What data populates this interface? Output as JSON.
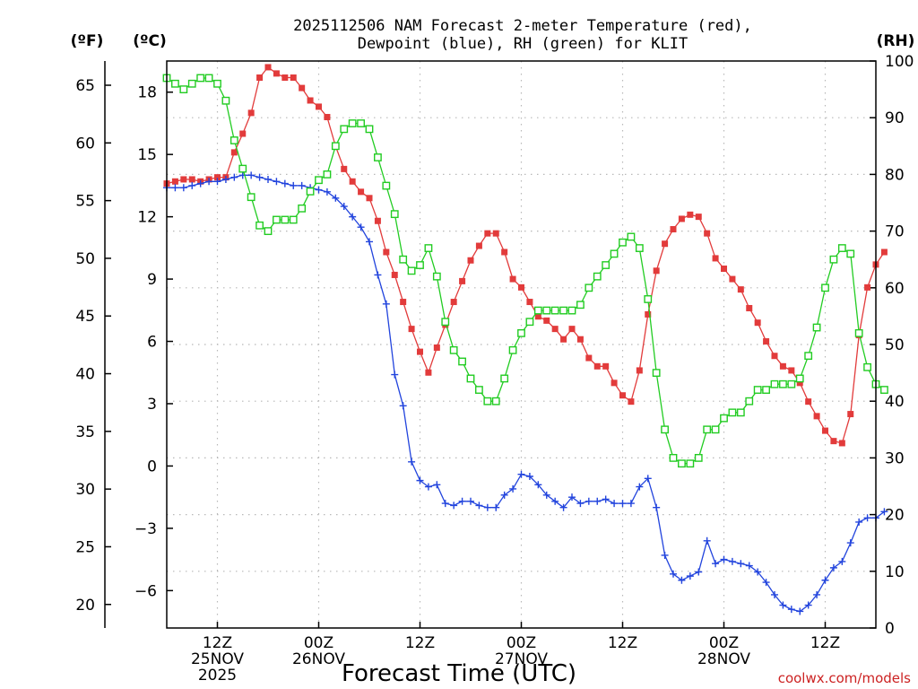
{
  "chart_data": {
    "type": "line",
    "title_line1": "2025112506 NAM Forecast 2-meter Temperature (red),",
    "title_line2": "Dewpoint (blue), RH (green) for KLIT",
    "unit_f": "(ºF)",
    "unit_c": "(ºC)",
    "unit_rh": "(RH)",
    "xlabel": "Forecast Time (UTC)",
    "credit": "coolwx.com/models",
    "x_unit": "hours since 2025-11-25 06Z",
    "xlim": [
      0,
      84
    ],
    "c_ylim": [
      -7.8,
      19.5
    ],
    "rh_ylim": [
      0,
      100
    ],
    "f_ticks": [
      20,
      25,
      30,
      35,
      40,
      45,
      50,
      55,
      60,
      65
    ],
    "c_ticks": [
      -6,
      -3,
      0,
      3,
      6,
      9,
      12,
      15,
      18
    ],
    "c_tick_labels": [
      "−6",
      "−3",
      "0",
      "3",
      "6",
      "9",
      "12",
      "15",
      "18"
    ],
    "rh_ticks": [
      0,
      10,
      20,
      30,
      40,
      50,
      60,
      70,
      80,
      90,
      100
    ],
    "x_ticks": [
      {
        "x": 6,
        "l1": "12Z",
        "l2": "25NOV",
        "l3": "2025"
      },
      {
        "x": 18,
        "l1": "00Z",
        "l2": "26NOV",
        "l3": ""
      },
      {
        "x": 30,
        "l1": "12Z",
        "l2": "",
        "l3": ""
      },
      {
        "x": 42,
        "l1": "00Z",
        "l2": "27NOV",
        "l3": ""
      },
      {
        "x": 54,
        "l1": "12Z",
        "l2": "",
        "l3": ""
      },
      {
        "x": 66,
        "l1": "00Z",
        "l2": "28NOV",
        "l3": ""
      },
      {
        "x": 78,
        "l1": "12Z",
        "l2": "",
        "l3": ""
      }
    ],
    "series": [
      {
        "name": "Temperature",
        "axis": "C",
        "color": "#e23b3b",
        "marker": "filled-square",
        "values": [
          13.6,
          13.7,
          13.8,
          13.8,
          13.7,
          13.8,
          13.9,
          13.9,
          15.1,
          16.0,
          17.0,
          18.7,
          19.2,
          18.9,
          18.7,
          18.7,
          18.2,
          17.6,
          17.3,
          16.8,
          15.4,
          14.3,
          13.7,
          13.2,
          12.9,
          11.8,
          10.3,
          9.2,
          7.9,
          6.6,
          5.5,
          4.5,
          5.7,
          6.8,
          7.9,
          8.9,
          9.9,
          10.6,
          11.2,
          11.2,
          10.3,
          9.0,
          8.6,
          7.9,
          7.2,
          7.0,
          6.6,
          6.1,
          6.6,
          6.1,
          5.2,
          4.8,
          4.8,
          4.0,
          3.4,
          3.1,
          4.6,
          7.3,
          9.4,
          10.7,
          11.4,
          11.9,
          12.1,
          12.0,
          11.2,
          10.0,
          9.5,
          9.0,
          8.5,
          7.6,
          6.9,
          6.0,
          5.3,
          4.8,
          4.6,
          4.0,
          3.1,
          2.4,
          1.7,
          1.2,
          1.1,
          2.5,
          6.3,
          8.6,
          9.7,
          10.3
        ]
      },
      {
        "name": "Dewpoint",
        "axis": "C",
        "color": "#2244dd",
        "marker": "plus",
        "values": [
          13.4,
          13.4,
          13.4,
          13.5,
          13.6,
          13.7,
          13.7,
          13.8,
          13.9,
          14.0,
          14.0,
          13.9,
          13.8,
          13.7,
          13.6,
          13.5,
          13.5,
          13.4,
          13.3,
          13.2,
          12.9,
          12.5,
          12.0,
          11.5,
          10.8,
          9.2,
          7.8,
          4.4,
          2.9,
          0.2,
          -0.7,
          -1.0,
          -0.9,
          -1.8,
          -1.9,
          -1.7,
          -1.7,
          -1.9,
          -2.0,
          -2.0,
          -1.4,
          -1.1,
          -0.4,
          -0.5,
          -0.9,
          -1.4,
          -1.7,
          -2.0,
          -1.5,
          -1.8,
          -1.7,
          -1.7,
          -1.6,
          -1.8,
          -1.8,
          -1.8,
          -1.0,
          -0.6,
          -2.0,
          -4.3,
          -5.2,
          -5.5,
          -5.3,
          -5.1,
          -3.6,
          -4.7,
          -4.5,
          -4.6,
          -4.7,
          -4.8,
          -5.1,
          -5.6,
          -6.2,
          -6.7,
          -6.9,
          -7.0,
          -6.7,
          -6.2,
          -5.5,
          -4.9,
          -4.6,
          -3.7,
          -2.7,
          -2.5,
          -2.5,
          -2.2
        ]
      },
      {
        "name": "RH",
        "axis": "RH",
        "color": "#22cc22",
        "marker": "open-square",
        "values": [
          97,
          96,
          95,
          96,
          97,
          97,
          96,
          93,
          86,
          81,
          76,
          71,
          70,
          72,
          72,
          72,
          74,
          77,
          79,
          80,
          85,
          88,
          89,
          89,
          88,
          83,
          78,
          73,
          65,
          63,
          64,
          67,
          62,
          54,
          49,
          47,
          44,
          42,
          40,
          40,
          44,
          49,
          52,
          54,
          56,
          56,
          56,
          56,
          56,
          57,
          60,
          62,
          64,
          66,
          68,
          69,
          67,
          58,
          45,
          35,
          30,
          29,
          29,
          30,
          35,
          35,
          37,
          38,
          38,
          40,
          42,
          42,
          43,
          43,
          43,
          44,
          48,
          53,
          60,
          65,
          67,
          66,
          52,
          46,
          43,
          42
        ]
      }
    ]
  }
}
